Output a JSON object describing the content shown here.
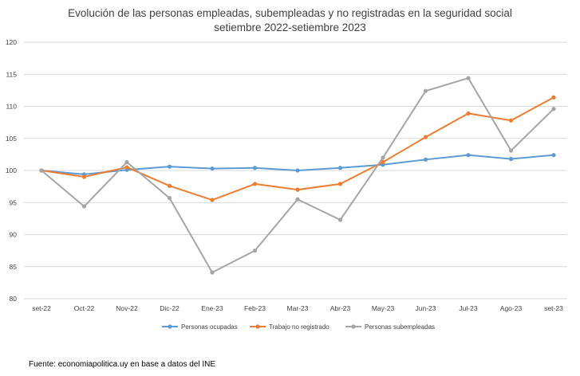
{
  "chart_data": {
    "type": "line",
    "title": "Evolución de las personas empleadas, subempleadas y no registradas en la seguridad social",
    "subtitle": "setiembre 2022-setiembre 2023",
    "xlabel": "",
    "ylabel": "",
    "categories": [
      "set-22",
      "Oct-22",
      "Nov-22",
      "Dic-22",
      "Ene-23",
      "Feb-23",
      "Mar-23",
      "Abr-23",
      "May-23",
      "Jun-23",
      "Jul-23",
      "Ago-23",
      "set-23"
    ],
    "ylim": [
      80,
      120
    ],
    "yticks": [
      80,
      85,
      90,
      95,
      100,
      105,
      110,
      115,
      120
    ],
    "grid": true,
    "legend_position": "bottom",
    "series": [
      {
        "name": "Personas ocupadas",
        "color": "#5B9BD5",
        "values": [
          100,
          99.4,
          100.1,
          100.6,
          100.3,
          100.4,
          100.0,
          100.4,
          100.9,
          101.7,
          102.4,
          101.8,
          102.4
        ]
      },
      {
        "name": "Trabajo no registrado",
        "color": "#ED7D31",
        "values": [
          100,
          99.0,
          100.5,
          97.6,
          95.4,
          97.9,
          97.0,
          97.9,
          101.3,
          105.2,
          108.9,
          107.8,
          111.4
        ]
      },
      {
        "name": "Personas subempleadas",
        "color": "#A5A5A5",
        "values": [
          100,
          94.4,
          101.3,
          95.7,
          84.1,
          87.5,
          95.5,
          92.3,
          102.0,
          112.4,
          114.4,
          103.1,
          109.6
        ]
      }
    ]
  },
  "source": "Fuente: economiapolitica.uy en base a datos del INE"
}
